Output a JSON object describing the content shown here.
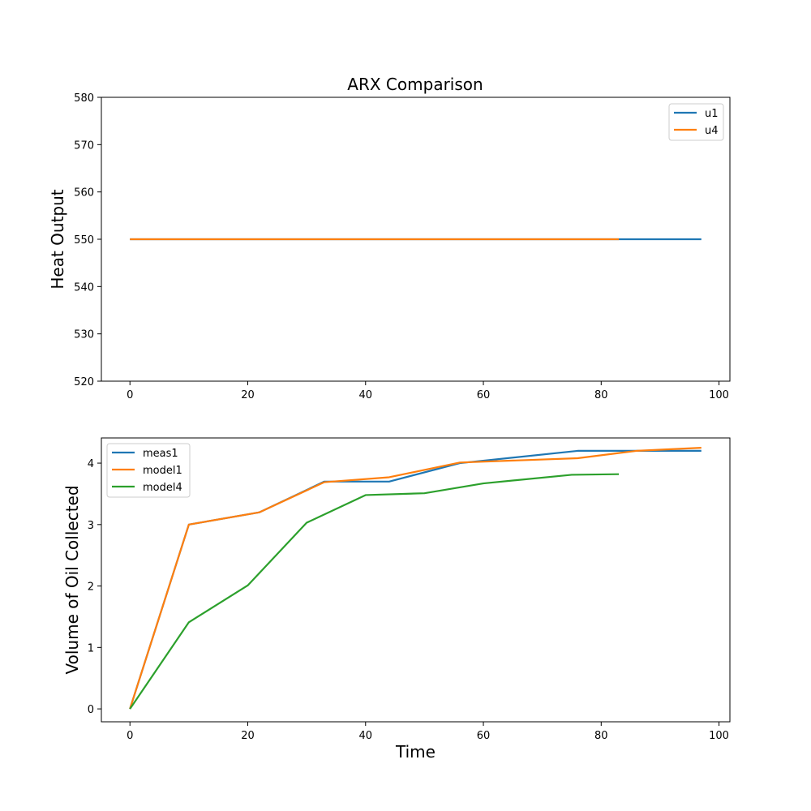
{
  "figure": {
    "title": "ARX Comparison"
  },
  "chart_data": [
    {
      "type": "line",
      "title": "ARX Comparison",
      "xlabel": "",
      "ylabel": "Heat Output",
      "xlim": [
        -4.85,
        101.85
      ],
      "ylim": [
        520,
        580
      ],
      "xticks": [
        0,
        20,
        40,
        60,
        80,
        100
      ],
      "yticks": [
        520,
        530,
        540,
        550,
        560,
        570,
        580
      ],
      "grid": false,
      "legend": "upper right",
      "series": [
        {
          "name": "u1",
          "color": "#1f77b4",
          "x": [
            0,
            97
          ],
          "y": [
            550,
            550
          ]
        },
        {
          "name": "u4",
          "color": "#ff7f0e",
          "x": [
            0,
            83
          ],
          "y": [
            550,
            550
          ]
        }
      ]
    },
    {
      "type": "line",
      "title": "",
      "xlabel": "Time",
      "ylabel": "Volume of Oil Collected",
      "xlim": [
        -4.85,
        101.85
      ],
      "ylim": [
        -0.21,
        4.41
      ],
      "xticks": [
        0,
        20,
        40,
        60,
        80,
        100
      ],
      "yticks": [
        0,
        1,
        2,
        3,
        4
      ],
      "grid": false,
      "legend": "upper left",
      "series": [
        {
          "name": "meas1",
          "color": "#1f77b4",
          "x": [
            0,
            10,
            22,
            33,
            44,
            56,
            76,
            97
          ],
          "y": [
            0,
            3.0,
            3.2,
            3.7,
            3.7,
            4.0,
            4.2,
            4.2
          ]
        },
        {
          "name": "model1",
          "color": "#ff7f0e",
          "x": [
            0,
            10,
            22,
            33,
            44,
            56,
            76,
            86,
            97
          ],
          "y": [
            0,
            3.0,
            3.2,
            3.69,
            3.77,
            4.01,
            4.08,
            4.2,
            4.25
          ]
        },
        {
          "name": "model4",
          "color": "#2ca02c",
          "x": [
            0,
            10,
            20,
            30,
            40,
            50,
            60,
            75,
            83
          ],
          "y": [
            0,
            1.41,
            2.01,
            3.03,
            3.48,
            3.51,
            3.67,
            3.81,
            3.82
          ]
        }
      ]
    }
  ]
}
